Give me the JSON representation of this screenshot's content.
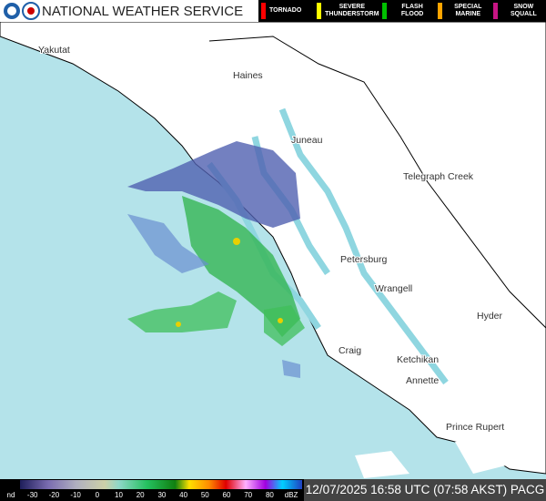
{
  "header": {
    "title": "NATIONAL WEATHER SERVICE",
    "warnings": [
      {
        "label": "TORNADO",
        "color": "#ff0000"
      },
      {
        "label": "SEVERE THUNDERSTORM",
        "color": "#ffff00"
      },
      {
        "label": "FLASH FLOOD",
        "color": "#00c000"
      },
      {
        "label": "SPECIAL MARINE",
        "color": "#ffa500"
      },
      {
        "label": "SNOW SQUALL",
        "color": "#c71585"
      }
    ]
  },
  "map": {
    "places": [
      "Yakutat",
      "Haines",
      "Juneau",
      "Telegraph Creek",
      "Petersburg",
      "Wrangell",
      "Hyder",
      "Craig",
      "Ketchikan",
      "Annette",
      "Prince Rupert"
    ]
  },
  "scale": {
    "labels": [
      "nd",
      "-30",
      "-20",
      "-10",
      "0",
      "10",
      "20",
      "30",
      "40",
      "50",
      "60",
      "70",
      "80",
      "dBZ"
    ]
  },
  "timestamp": "12/07/2025 16:58 UTC (07:58 AKST) PACG"
}
